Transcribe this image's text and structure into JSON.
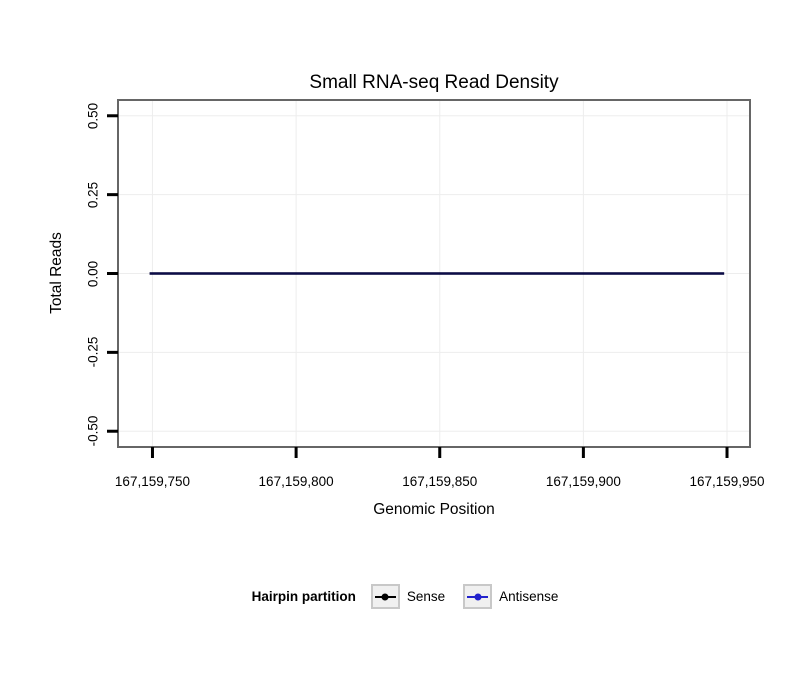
{
  "chart_data": {
    "type": "line",
    "title": "Small RNA-seq Read Density",
    "xlabel": "Genomic Position",
    "ylabel": "Total Reads",
    "xlim": [
      167159738,
      167159958
    ],
    "ylim": [
      -0.55,
      0.55
    ],
    "grid": true,
    "legend_position": "bottom",
    "xticks": [
      {
        "value": 167159750,
        "label": "167,159,750"
      },
      {
        "value": 167159800,
        "label": "167,159,800"
      },
      {
        "value": 167159850,
        "label": "167,159,850"
      },
      {
        "value": 167159900,
        "label": "167,159,900"
      },
      {
        "value": 167159950,
        "label": "167,159,950"
      }
    ],
    "yticks": [
      {
        "value": 0.5,
        "label": "0.50"
      },
      {
        "value": 0.25,
        "label": "0.25"
      },
      {
        "value": 0,
        "label": "0.00"
      },
      {
        "value": -0.25,
        "label": "-0.25"
      },
      {
        "value": -0.5,
        "label": "-0.50"
      }
    ],
    "series": [
      {
        "name": "Sense",
        "color": "#000000",
        "opacity": 1,
        "x": [
          167159749,
          167159949
        ],
        "y": [
          0,
          0
        ]
      },
      {
        "name": "Antisense",
        "color": "#2222CC",
        "opacity": 0.35,
        "x": [
          167159749,
          167159949
        ],
        "y": [
          0,
          0
        ]
      }
    ]
  },
  "legend": {
    "title": "Hairpin partition",
    "items": [
      {
        "label": "Sense",
        "color": "#000000"
      },
      {
        "label": "Antisense",
        "color": "#2222CC"
      }
    ]
  },
  "style": {
    "grid_color": "#EDEDED",
    "panel_border_color": "#666666",
    "tick_color": "#000000",
    "line_width": 2.5,
    "legend_key_bg": "#F0F0F0",
    "legend_key_border": "#C8C8C8"
  }
}
